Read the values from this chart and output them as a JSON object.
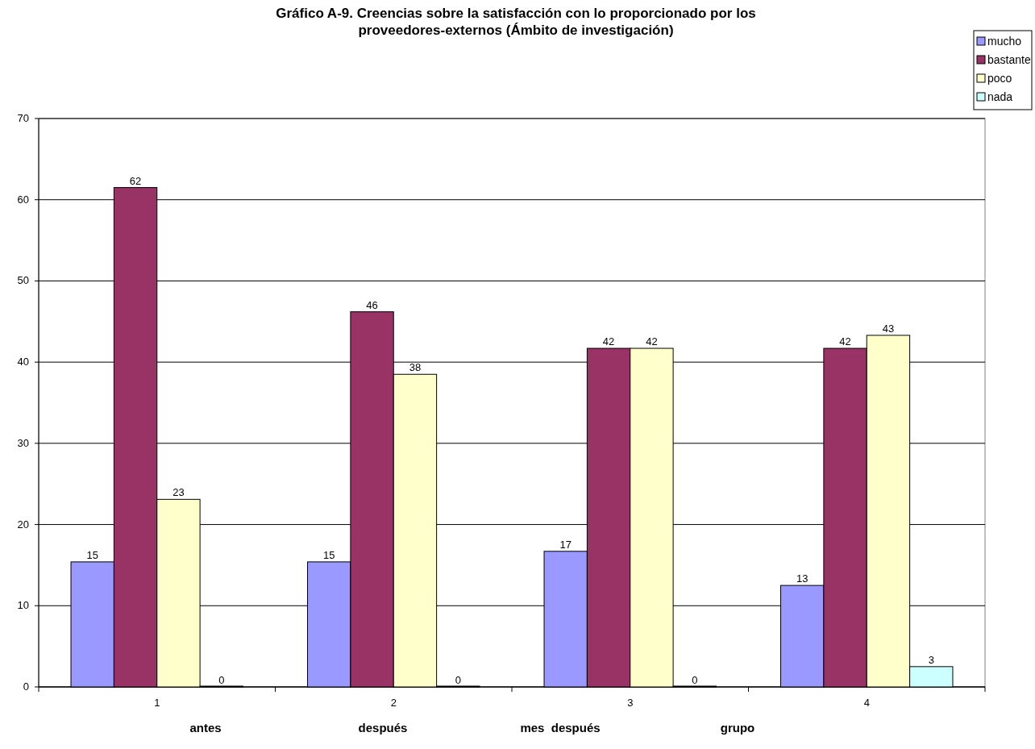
{
  "chart_data": {
    "type": "bar",
    "title": "Gráfico A-9. Creencias sobre la satisfacción con lo proporcionado por los proveedores-externos (Ámbito de investigación)",
    "categories": [
      "1",
      "2",
      "3",
      "4"
    ],
    "series": [
      {
        "name": "mucho",
        "color": "#9999ff",
        "values": [
          15.4,
          15.4,
          16.7,
          12.5
        ],
        "value_labels": [
          "15",
          "15",
          "17",
          "13"
        ]
      },
      {
        "name": "bastante",
        "color": "#993366",
        "values": [
          61.5,
          46.2,
          41.7,
          41.7
        ],
        "value_labels": [
          "62",
          "46",
          "42",
          "42"
        ]
      },
      {
        "name": "poco",
        "color": "#ffffcc",
        "values": [
          23.1,
          38.5,
          41.7,
          43.3
        ],
        "value_labels": [
          "23",
          "38",
          "42",
          "43"
        ]
      },
      {
        "name": "nada",
        "color": "#ccffff",
        "values": [
          0,
          0,
          0,
          2.5
        ],
        "value_labels": [
          "0",
          "0",
          "0",
          "3"
        ]
      }
    ],
    "ylim": [
      0,
      70
    ],
    "yticks": [
      0,
      10,
      20,
      30,
      40,
      50,
      60,
      70
    ],
    "grid": "y",
    "legend": "top right",
    "annotations": [
      "antes",
      "después",
      "mes  después",
      "grupo"
    ]
  }
}
